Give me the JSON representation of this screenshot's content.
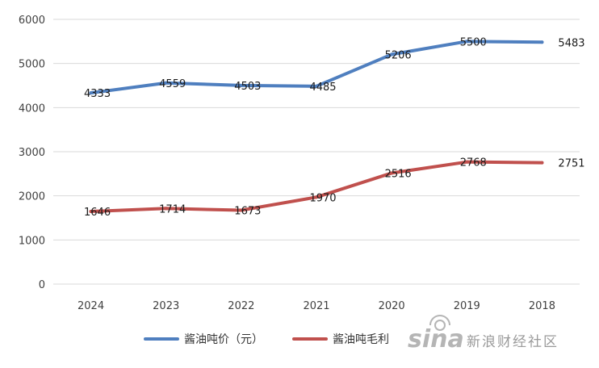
{
  "chart_data": {
    "type": "line",
    "categories": [
      "2024",
      "2023",
      "2022",
      "2021",
      "2020",
      "2019",
      "2018"
    ],
    "ylim": [
      0,
      6000
    ],
    "y_ticks": [
      "0",
      "1000",
      "2000",
      "3000",
      "4000",
      "5000",
      "6000"
    ],
    "grid": true,
    "legend": "bottom",
    "series": [
      {
        "name": "酱油吨价（元）",
        "color": "#4f7fbf",
        "values": [
          4333,
          4559,
          4503,
          4485,
          5206,
          5500,
          5483
        ]
      },
      {
        "name": "酱油吨毛利",
        "color": "#c0504d",
        "values": [
          1646,
          1714,
          1673,
          1970,
          2516,
          2768,
          2751
        ]
      }
    ]
  },
  "watermark": {
    "text": "新浪财经社区",
    "logo": "sina"
  }
}
